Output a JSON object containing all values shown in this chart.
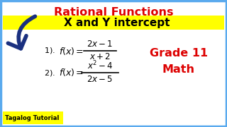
{
  "title1": "Rational Functions",
  "title2": "X and Y intercept",
  "eq1_label": "1).",
  "eq2_label": "2).",
  "grade_text": "Grade 11\nMath",
  "tagline": "Tagalog Tutorial",
  "bg_color": "#ffffff",
  "border_color": "#5aaaee",
  "title1_color": "#dd0000",
  "title2_bg": "#ffff00",
  "title2_color": "#000000",
  "eq_color": "#000000",
  "grade_color": "#dd0000",
  "arrow_color": "#1a3080",
  "tagline_bg": "#ffff00",
  "tagline_color": "#000000",
  "figw": 3.2,
  "figh": 1.8,
  "dpi": 100
}
